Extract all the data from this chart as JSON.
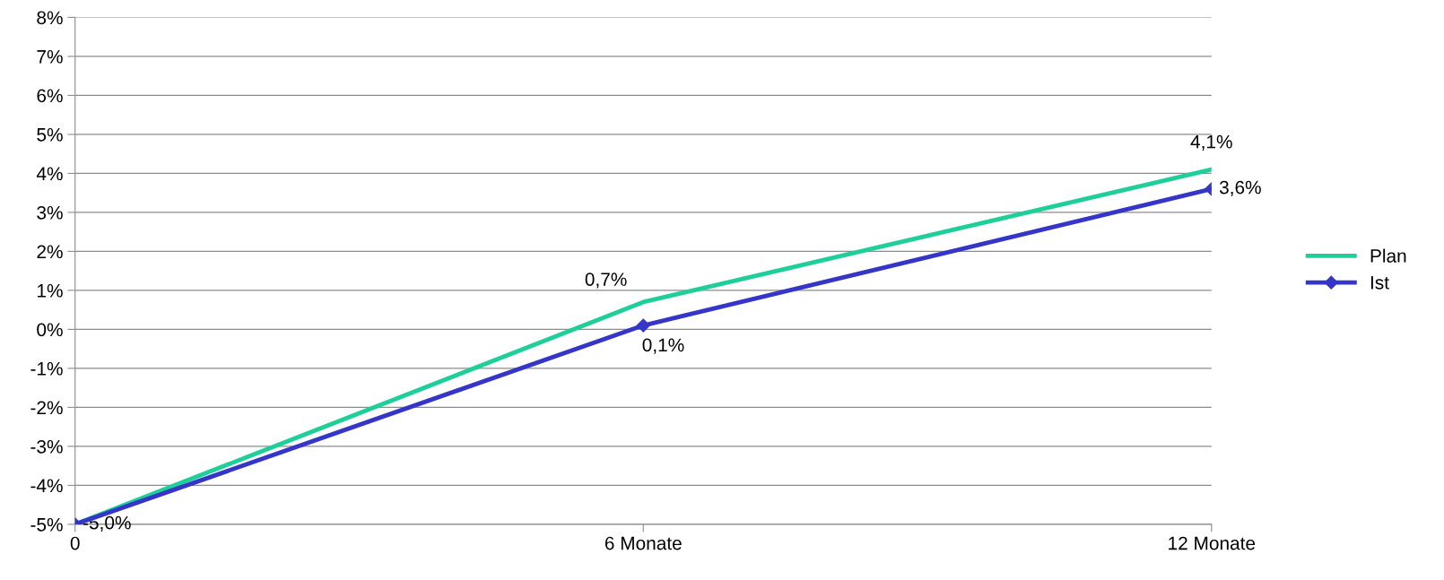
{
  "chart_data": {
    "type": "line",
    "categories": [
      "0",
      "6 Monate",
      "12 Monate"
    ],
    "series": [
      {
        "name": "Plan",
        "color": "#1fcf9a",
        "values": [
          -5.0,
          0.7,
          4.1
        ],
        "value_labels": [
          null,
          "0,7%",
          "4,1%"
        ],
        "marker": "none"
      },
      {
        "name": "Ist",
        "color": "#3535c8",
        "values": [
          -5.0,
          0.1,
          3.6
        ],
        "value_labels": [
          "-5,0%",
          "0,1%",
          "3,6%"
        ],
        "marker": "diamond"
      }
    ],
    "ylim": [
      -5,
      8
    ],
    "yticks": [
      {
        "value": -5,
        "label": "-5%"
      },
      {
        "value": -4,
        "label": "-4%"
      },
      {
        "value": -3,
        "label": "-3%"
      },
      {
        "value": -2,
        "label": "-2%"
      },
      {
        "value": -1,
        "label": "-1%"
      },
      {
        "value": 0,
        "label": "0%"
      },
      {
        "value": 1,
        "label": "1%"
      },
      {
        "value": 2,
        "label": "2%"
      },
      {
        "value": 3,
        "label": "3%"
      },
      {
        "value": 4,
        "label": "4%"
      },
      {
        "value": 5,
        "label": "5%"
      },
      {
        "value": 6,
        "label": "6%"
      },
      {
        "value": 7,
        "label": "7%"
      },
      {
        "value": 8,
        "label": "8%"
      }
    ],
    "grid": "y",
    "legend": "right",
    "line_style": "solid"
  }
}
